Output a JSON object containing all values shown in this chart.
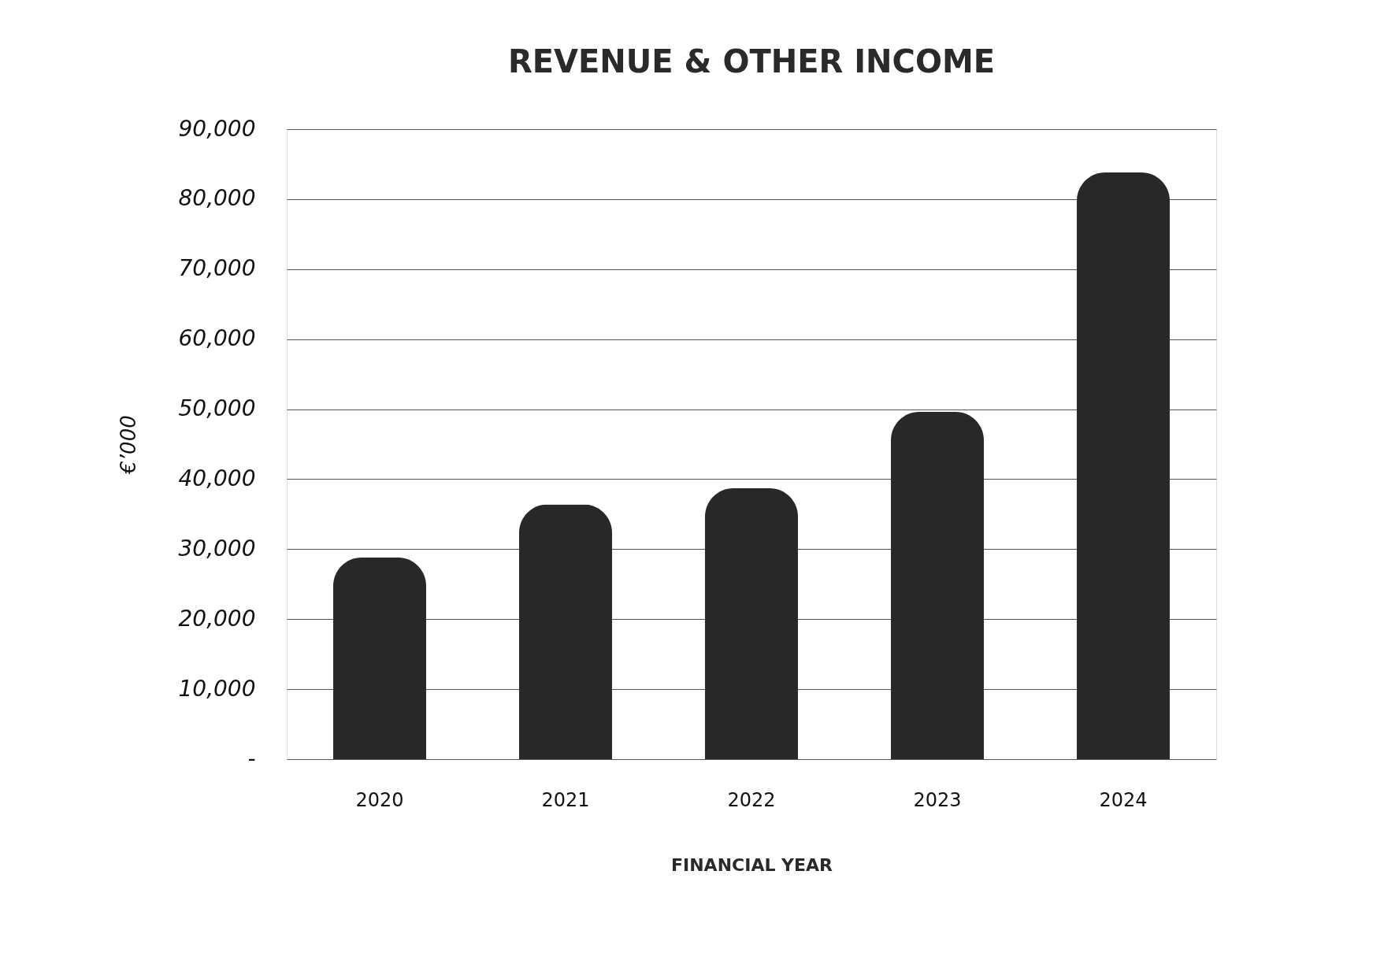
{
  "chart_data": {
    "type": "bar",
    "title": "REVENUE & OTHER INCOME",
    "xlabel": "FINANCIAL YEAR",
    "ylabel": "€’000",
    "categories": [
      "2020",
      "2021",
      "2022",
      "2023",
      "2024"
    ],
    "series": [
      {
        "color": "#282828",
        "values": [
          28800,
          36400,
          38700,
          49600,
          83800
        ]
      }
    ],
    "ylim": [
      0,
      90000
    ],
    "yticks": [
      {
        "value": 0,
        "label": "-"
      },
      {
        "value": 10000,
        "label": "10,000"
      },
      {
        "value": 20000,
        "label": "20,000"
      },
      {
        "value": 30000,
        "label": "30,000"
      },
      {
        "value": 40000,
        "label": "40,000"
      },
      {
        "value": 50000,
        "label": "50,000"
      },
      {
        "value": 60000,
        "label": "60,000"
      },
      {
        "value": 70000,
        "label": "70,000"
      },
      {
        "value": 80000,
        "label": "80,000"
      },
      {
        "value": 90000,
        "label": "90,000"
      }
    ],
    "grid": "y",
    "legend": false
  }
}
